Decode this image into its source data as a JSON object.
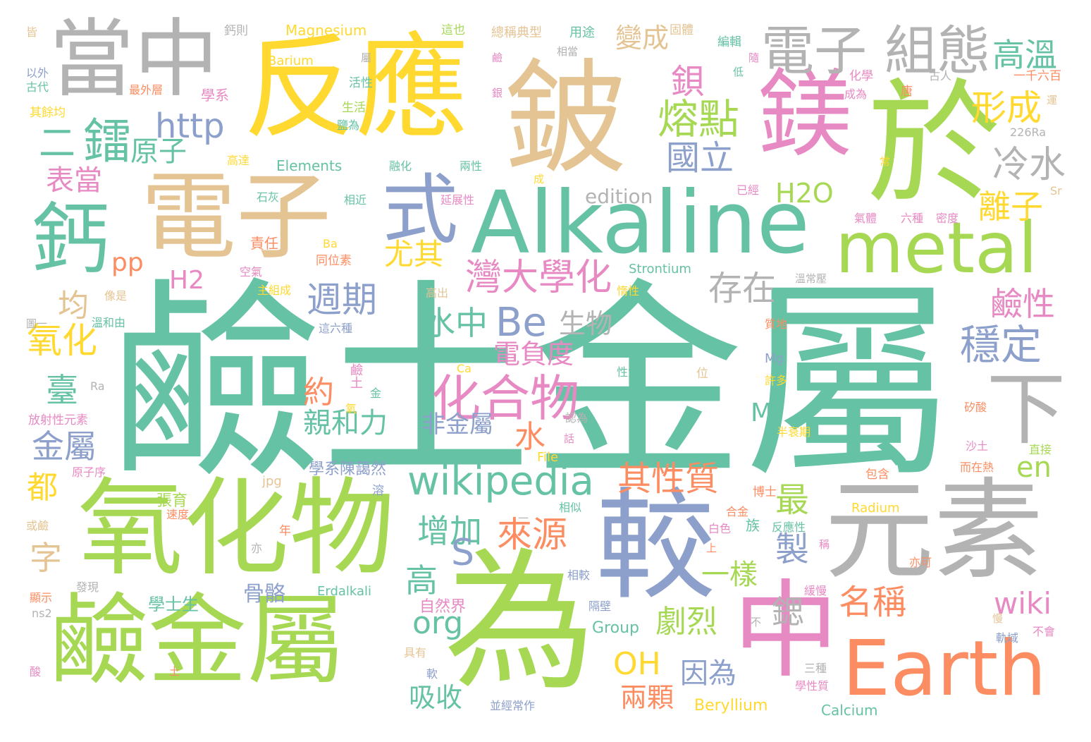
{
  "palette": {
    "teal": "#66c2a5",
    "orange": "#fc8d62",
    "blue": "#8da0cb",
    "pink": "#e78ac3",
    "green": "#a6d854",
    "yellow": "#ffd92f",
    "tan": "#e5c494",
    "gray": "#b3b3b3"
  },
  "words": [
    {
      "text": "鹼土金屬",
      "color": "#66c2a5"
    },
    {
      "text": "反應",
      "color": "#ffd92f"
    },
    {
      "text": "鈹",
      "color": "#e5c494"
    },
    {
      "text": "於",
      "color": "#a6d854"
    },
    {
      "text": "當中",
      "color": "#b3b3b3"
    },
    {
      "text": "鎂",
      "color": "#e78ac3"
    },
    {
      "text": "電子",
      "color": "#b3b3b3"
    },
    {
      "text": "組態",
      "color": "#b3b3b3"
    },
    {
      "text": "高溫",
      "color": "#66c2a5"
    },
    {
      "text": "電子",
      "color": "#e5c494"
    },
    {
      "text": "式",
      "color": "#8da0cb"
    },
    {
      "text": "Alkaline",
      "color": "#66c2a5"
    },
    {
      "text": "metal",
      "color": "#a6d854"
    },
    {
      "text": "鈣",
      "color": "#66c2a5"
    },
    {
      "text": "氧化物",
      "color": "#a6d854"
    },
    {
      "text": "鹼金屬",
      "color": "#a6d854"
    },
    {
      "text": "為",
      "color": "#a6d854"
    },
    {
      "text": "較",
      "color": "#8da0cb"
    },
    {
      "text": "中",
      "color": "#e78ac3"
    },
    {
      "text": "元素",
      "color": "#b3b3b3"
    },
    {
      "text": "Earth",
      "color": "#fc8d62"
    },
    {
      "text": "下",
      "color": "#b3b3b3"
    },
    {
      "text": "wikipedia",
      "color": "#66c2a5"
    },
    {
      "text": "化合物",
      "color": "#e78ac3"
    },
    {
      "text": "鋇",
      "color": "#e78ac3"
    },
    {
      "text": "熔點",
      "color": "#a6d854"
    },
    {
      "text": "形成",
      "color": "#ffd92f"
    },
    {
      "text": "國立",
      "color": "#8da0cb"
    },
    {
      "text": "冷水",
      "color": "#b3b3b3"
    },
    {
      "text": "http",
      "color": "#8da0cb"
    },
    {
      "text": "鐳",
      "color": "#66c2a5"
    },
    {
      "text": "原子",
      "color": "#66c2a5"
    },
    {
      "text": "二",
      "color": "#66c2a5"
    },
    {
      "text": "表當",
      "color": "#e78ac3"
    },
    {
      "text": "變成",
      "color": "#e5c494"
    },
    {
      "text": "H2O",
      "color": "#a6d854"
    },
    {
      "text": "離子",
      "color": "#ffd92f"
    },
    {
      "text": "鹼性",
      "color": "#e78ac3"
    },
    {
      "text": "穩定",
      "color": "#8da0cb"
    },
    {
      "text": "存在",
      "color": "#b3b3b3"
    },
    {
      "text": "灣大學化",
      "color": "#e78ac3"
    },
    {
      "text": "尤其",
      "color": "#ffd92f"
    },
    {
      "text": "週期",
      "color": "#8da0cb"
    },
    {
      "text": "Be",
      "color": "#8da0cb"
    },
    {
      "text": "水中",
      "color": "#66c2a5"
    },
    {
      "text": "生物",
      "color": "#b3b3b3"
    },
    {
      "text": "電負度",
      "color": "#e78ac3"
    },
    {
      "text": "均",
      "color": "#e5c494"
    },
    {
      "text": "氧化",
      "color": "#ffd92f"
    },
    {
      "text": "pp",
      "color": "#fc8d62"
    },
    {
      "text": "H2",
      "color": "#e78ac3"
    },
    {
      "text": "臺",
      "color": "#66c2a5"
    },
    {
      "text": "約",
      "color": "#fc8d62"
    },
    {
      "text": "親和力",
      "color": "#66c2a5"
    },
    {
      "text": "金屬",
      "color": "#8da0cb"
    },
    {
      "text": "都",
      "color": "#ffd92f"
    },
    {
      "text": "字",
      "color": "#e5c494"
    },
    {
      "text": "水",
      "color": "#fc8d62"
    },
    {
      "text": "非金屬",
      "color": "#8da0cb"
    },
    {
      "text": "M",
      "color": "#66c2a5"
    },
    {
      "text": "en",
      "color": "#a6d854"
    },
    {
      "text": "其性質",
      "color": "#fc8d62"
    },
    {
      "text": "最",
      "color": "#a6d854"
    },
    {
      "text": "製",
      "color": "#8da0cb"
    },
    {
      "text": "來源",
      "color": "#fc8d62"
    },
    {
      "text": "增加",
      "color": "#66c2a5"
    },
    {
      "text": "S",
      "color": "#8da0cb"
    },
    {
      "text": "高",
      "color": "#66c2a5"
    },
    {
      "text": "一樣",
      "color": "#a6d854"
    },
    {
      "text": "名稱",
      "color": "#fc8d62"
    },
    {
      "text": "鍶",
      "color": "#b3b3b3"
    },
    {
      "text": "wiki",
      "color": "#e78ac3"
    },
    {
      "text": "org",
      "color": "#66c2a5"
    },
    {
      "text": "劇烈",
      "color": "#a6d854"
    },
    {
      "text": "OH",
      "color": "#ffd92f"
    },
    {
      "text": "因為",
      "color": "#8da0cb"
    },
    {
      "text": "兩顆",
      "color": "#fc8d62"
    },
    {
      "text": "吸收",
      "color": "#66c2a5"
    },
    {
      "text": "骨骼",
      "color": "#8da0cb"
    },
    {
      "text": "學士生",
      "color": "#66c2a5"
    },
    {
      "text": "學系陳藹然",
      "color": "#8da0cb"
    },
    {
      "text": "張育",
      "color": "#a6d854"
    },
    {
      "text": "自然界",
      "color": "#e78ac3"
    },
    {
      "text": "Group",
      "color": "#66c2a5"
    },
    {
      "text": "Beryllium",
      "color": "#ffd92f"
    },
    {
      "text": "Calcium",
      "color": "#66c2a5"
    },
    {
      "text": "Magnesium",
      "color": "#ffd92f"
    },
    {
      "text": "Barium",
      "color": "#ffd92f"
    },
    {
      "text": "Elements",
      "color": "#66c2a5"
    },
    {
      "text": "edition",
      "color": "#b3b3b3"
    },
    {
      "text": "Strontium",
      "color": "#66c2a5"
    },
    {
      "text": "Radium",
      "color": "#ffd92f"
    },
    {
      "text": "Erdalkali",
      "color": "#66c2a5"
    },
    {
      "text": "File",
      "color": "#ffd92f"
    },
    {
      "text": "jpg",
      "color": "#e5c494"
    },
    {
      "text": "226Ra",
      "color": "#b3b3b3"
    },
    {
      "text": "Sr",
      "color": "#e5c494"
    },
    {
      "text": "Ba",
      "color": "#ffd92f"
    },
    {
      "text": "Ca",
      "color": "#ffd92f"
    },
    {
      "text": "Mg",
      "color": "#8da0cb"
    },
    {
      "text": "Ra",
      "color": "#b3b3b3"
    },
    {
      "text": "ns2",
      "color": "#b3b3b3"
    },
    {
      "text": "總稱典型",
      "color": "#e5c494"
    },
    {
      "text": "用途",
      "color": "#66c2a5"
    },
    {
      "text": "固體",
      "color": "#e5c494"
    },
    {
      "text": "編輯",
      "color": "#66c2a5"
    },
    {
      "text": "一千六百",
      "color": "#fc8d62"
    },
    {
      "text": "古人",
      "color": "#b3b3b3"
    },
    {
      "text": "化學",
      "color": "#e78ac3"
    },
    {
      "text": "成為",
      "color": "#e78ac3"
    },
    {
      "text": "唐",
      "color": "#fc8d62"
    },
    {
      "text": "學系",
      "color": "#e78ac3"
    },
    {
      "text": "最外層",
      "color": "#fc8d62"
    },
    {
      "text": "活性",
      "color": "#66c2a5"
    },
    {
      "text": "生活",
      "color": "#a6d854"
    },
    {
      "text": "鹽為",
      "color": "#66c2a5"
    },
    {
      "text": "融化",
      "color": "#66c2a5"
    },
    {
      "text": "兩性",
      "color": "#66c2a5"
    },
    {
      "text": "高達",
      "color": "#ffd92f"
    },
    {
      "text": "石灰",
      "color": "#66c2a5"
    },
    {
      "text": "相近",
      "color": "#66c2a5"
    },
    {
      "text": "延展性",
      "color": "#e78ac3"
    },
    {
      "text": "已經",
      "color": "#e78ac3"
    },
    {
      "text": "氣體",
      "color": "#e78ac3"
    },
    {
      "text": "六種",
      "color": "#e78ac3"
    },
    {
      "text": "密度",
      "color": "#e78ac3"
    },
    {
      "text": "責任",
      "color": "#fc8d62"
    },
    {
      "text": "同位素",
      "color": "#fc8d62"
    },
    {
      "text": "空氣",
      "color": "#e78ac3"
    },
    {
      "text": "主組成",
      "color": "#ffd92f"
    },
    {
      "text": "高出",
      "color": "#e5c494"
    },
    {
      "text": "惰性",
      "color": "#ffd92f"
    },
    {
      "text": "這六種",
      "color": "#8da0cb"
    },
    {
      "text": "溫常壓",
      "color": "#b3b3b3"
    },
    {
      "text": "質地",
      "color": "#fc8d62"
    },
    {
      "text": "像是",
      "color": "#e5c494"
    },
    {
      "text": "溫和由",
      "color": "#66c2a5"
    },
    {
      "text": "圖一",
      "color": "#b3b3b3"
    },
    {
      "text": "其餘均",
      "color": "#ffd92f"
    },
    {
      "text": "以外",
      "color": "#8da0cb"
    },
    {
      "text": "古代",
      "color": "#66c2a5"
    },
    {
      "text": "鈣則",
      "color": "#b3b3b3"
    },
    {
      "text": "這也",
      "color": "#a6d854"
    },
    {
      "text": "放射性元素",
      "color": "#e78ac3"
    },
    {
      "text": "原子序",
      "color": "#e78ac3"
    },
    {
      "text": "性質",
      "color": "#66c2a5"
    },
    {
      "text": "位",
      "color": "#e5c494"
    },
    {
      "text": "認為",
      "color": "#b3b3b3"
    },
    {
      "text": "許多",
      "color": "#ffd92f"
    },
    {
      "text": "半衰期",
      "color": "#ffd92f"
    },
    {
      "text": "矽酸",
      "color": "#fc8d62"
    },
    {
      "text": "沙土",
      "color": "#e78ac3"
    },
    {
      "text": "直接",
      "color": "#a6d854"
    },
    {
      "text": "而在熱",
      "color": "#fc8d62"
    },
    {
      "text": "包含",
      "color": "#fc8d62"
    },
    {
      "text": "博士",
      "color": "#fc8d62"
    },
    {
      "text": "相似",
      "color": "#66c2a5"
    },
    {
      "text": "合金",
      "color": "#fc8d62"
    },
    {
      "text": "白色",
      "color": "#e78ac3"
    },
    {
      "text": "反應性",
      "color": "#66c2a5"
    },
    {
      "text": "族",
      "color": "#66c2a5"
    },
    {
      "text": "相較",
      "color": "#8da0cb"
    },
    {
      "text": "隔壁",
      "color": "#8da0cb"
    },
    {
      "text": "緩慢",
      "color": "#e78ac3"
    },
    {
      "text": "亦可",
      "color": "#fc8d62"
    },
    {
      "text": "速度",
      "color": "#fc8d62"
    },
    {
      "text": "或鹼",
      "color": "#e5c494"
    },
    {
      "text": "亦",
      "color": "#b3b3b3"
    },
    {
      "text": "年",
      "color": "#fc8d62"
    },
    {
      "text": "溶",
      "color": "#8da0cb"
    },
    {
      "text": "發現",
      "color": "#b3b3b3"
    },
    {
      "text": "顯示",
      "color": "#fc8d62"
    },
    {
      "text": "具有",
      "color": "#e5c494"
    },
    {
      "text": "軟",
      "color": "#8da0cb"
    },
    {
      "text": "並經常作",
      "color": "#8da0cb"
    },
    {
      "text": "三種",
      "color": "#b3b3b3"
    },
    {
      "text": "學性質",
      "color": "#e78ac3"
    },
    {
      "text": "軌域",
      "color": "#8da0cb"
    },
    {
      "text": "不會",
      "color": "#e78ac3"
    },
    {
      "text": "鹼土",
      "color": "#e78ac3"
    },
    {
      "text": "金",
      "color": "#66c2a5"
    },
    {
      "text": "氧",
      "color": "#ffd92f"
    },
    {
      "text": "酸",
      "color": "#e78ac3"
    },
    {
      "text": "皆",
      "color": "#e5c494"
    },
    {
      "text": "屬",
      "color": "#b3b3b3"
    },
    {
      "text": "相當",
      "color": "#b3b3b3"
    },
    {
      "text": "低",
      "color": "#66c2a5"
    },
    {
      "text": "隨",
      "color": "#e78ac3"
    },
    {
      "text": "鹼",
      "color": "#e78ac3"
    },
    {
      "text": "銀",
      "color": "#e78ac3"
    },
    {
      "text": "成",
      "color": "#ffd92f"
    },
    {
      "text": "運",
      "color": "#e5c494"
    },
    {
      "text": "常",
      "color": "#ffd92f"
    },
    {
      "text": "話",
      "color": "#e78ac3"
    },
    {
      "text": "稱",
      "color": "#e78ac3"
    },
    {
      "text": "慢",
      "color": "#e5c494"
    },
    {
      "text": "上",
      "color": "#fc8d62"
    },
    {
      "text": "不",
      "color": "#b3b3b3"
    },
    {
      "text": "土",
      "color": "#fc8d62"
    },
    {
      "text": "一",
      "color": "#b3b3b3"
    }
  ]
}
